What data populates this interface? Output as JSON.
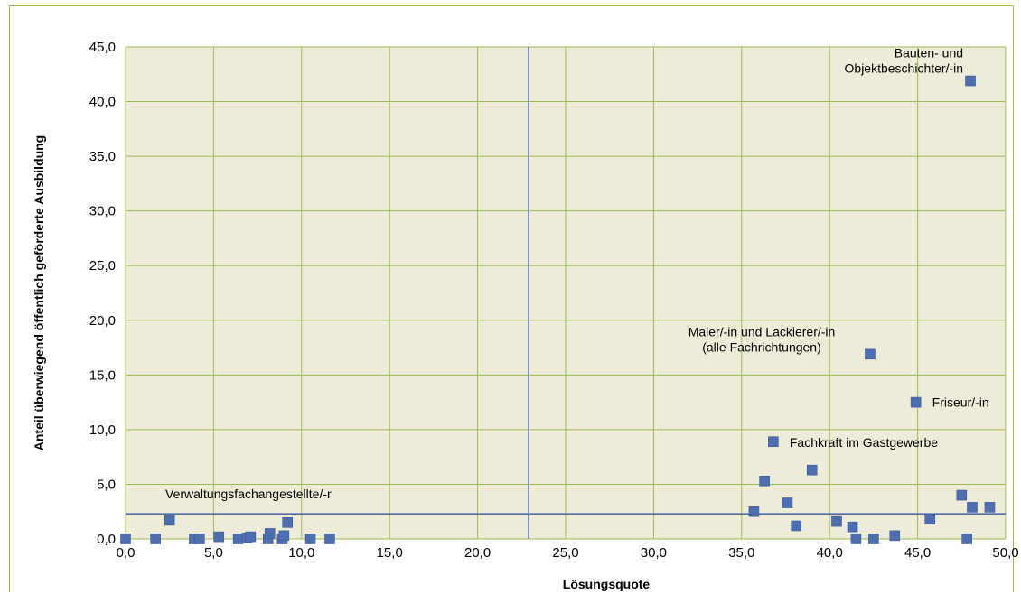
{
  "chart_data": {
    "type": "scatter",
    "xlabel": "Lösungsquote",
    "ylabel": "Anteil überwiegend öffentlich geförderte Ausbildung",
    "xlim": [
      0,
      50
    ],
    "ylim": [
      0,
      45
    ],
    "x_ticks": [
      "0,0",
      "5,0",
      "10,0",
      "15,0",
      "20,0",
      "25,0",
      "30,0",
      "35,0",
      "40,0",
      "45,0",
      "50,0"
    ],
    "y_ticks": [
      "0,0",
      "5,0",
      "10,0",
      "15,0",
      "20,0",
      "25,0",
      "30,0",
      "35,0",
      "40,0",
      "45,0"
    ],
    "grid": true,
    "reference_lines": {
      "x": 22.9,
      "y": 2.3
    },
    "colors": {
      "marker": "#4f6eb0",
      "grid": "#9bbb59",
      "plot_background": "#eeecd8",
      "reference_line": "#4f6eb0"
    },
    "points": [
      {
        "x": 0.0,
        "y": 0.0
      },
      {
        "x": 1.7,
        "y": 0.0
      },
      {
        "x": 2.5,
        "y": 1.7
      },
      {
        "x": 3.9,
        "y": 0.0
      },
      {
        "x": 4.2,
        "y": 0.0
      },
      {
        "x": 5.3,
        "y": 0.2
      },
      {
        "x": 6.4,
        "y": 0.0
      },
      {
        "x": 6.9,
        "y": 0.1
      },
      {
        "x": 7.1,
        "y": 0.2
      },
      {
        "x": 8.1,
        "y": 0.0
      },
      {
        "x": 8.2,
        "y": 0.5
      },
      {
        "x": 8.9,
        "y": 0.0
      },
      {
        "x": 9.0,
        "y": 0.3
      },
      {
        "x": 9.2,
        "y": 1.5
      },
      {
        "x": 10.5,
        "y": 0.0
      },
      {
        "x": 11.6,
        "y": 0.0
      },
      {
        "x": 35.7,
        "y": 2.5
      },
      {
        "x": 36.3,
        "y": 5.3
      },
      {
        "x": 36.8,
        "y": 8.9
      },
      {
        "x": 37.6,
        "y": 3.3
      },
      {
        "x": 38.1,
        "y": 1.2
      },
      {
        "x": 39.0,
        "y": 6.3
      },
      {
        "x": 40.4,
        "y": 1.6
      },
      {
        "x": 41.3,
        "y": 1.1
      },
      {
        "x": 41.5,
        "y": 0.0
      },
      {
        "x": 42.3,
        "y": 16.9
      },
      {
        "x": 42.5,
        "y": 0.0
      },
      {
        "x": 43.7,
        "y": 0.3
      },
      {
        "x": 44.9,
        "y": 12.5
      },
      {
        "x": 45.7,
        "y": 1.8
      },
      {
        "x": 47.5,
        "y": 4.0
      },
      {
        "x": 47.8,
        "y": 0.0
      },
      {
        "x": 48.0,
        "y": 41.9
      },
      {
        "x": 48.1,
        "y": 2.9
      },
      {
        "x": 49.1,
        "y": 2.9
      }
    ],
    "annotations": [
      {
        "lines": [
          "Bauten- und",
          "Objektbeschichter/-in"
        ],
        "x": 48.0,
        "y": 41.9
      },
      {
        "lines": [
          "Maler/-in und Lackierer/-in",
          "(alle Fachrichtungen)"
        ],
        "x": 42.3,
        "y": 16.9
      },
      {
        "lines": [
          "Friseur/-in"
        ],
        "x": 44.9,
        "y": 12.5
      },
      {
        "lines": [
          "Fachkraft im Gastgewerbe"
        ],
        "x": 36.8,
        "y": 8.9
      },
      {
        "lines": [
          "Verwaltungsfachangestellte/-r"
        ],
        "x": 2.3,
        "y": 2.3
      }
    ]
  }
}
